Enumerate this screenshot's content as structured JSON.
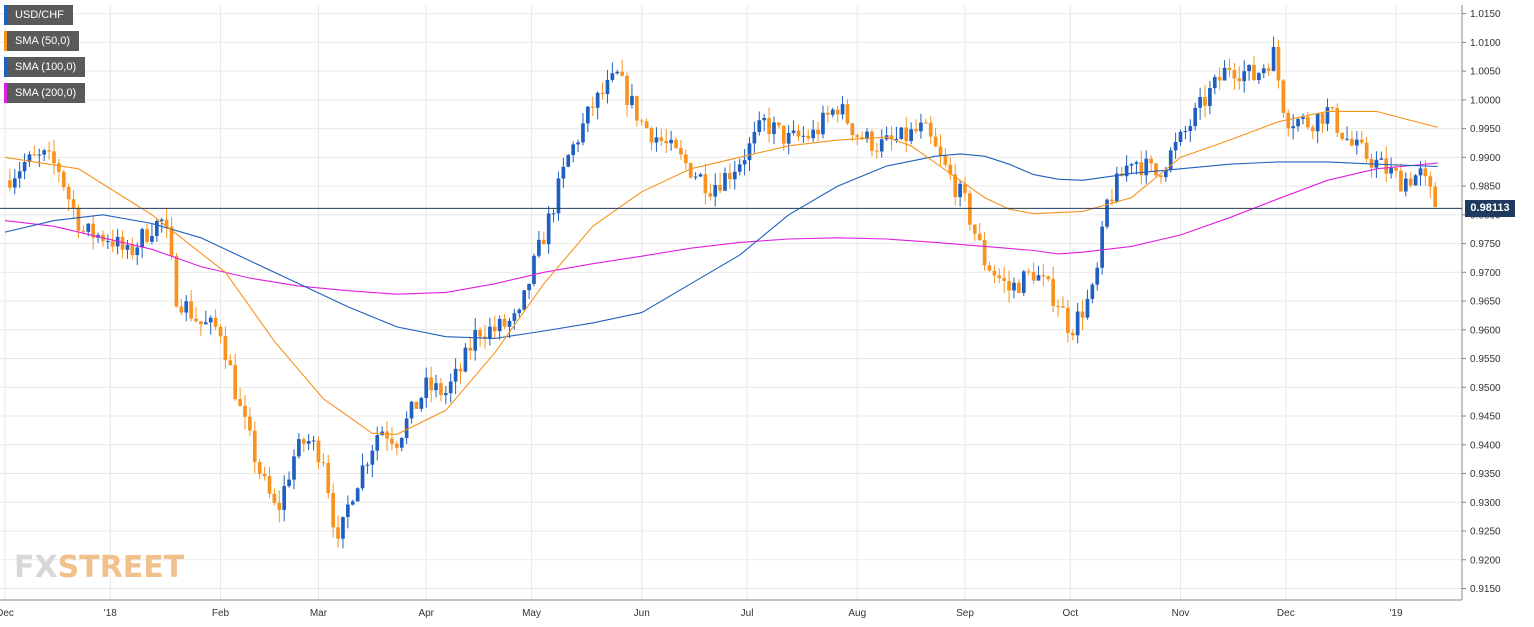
{
  "legend": [
    {
      "label": "USD/CHF",
      "color": "#1f5fbf"
    },
    {
      "label": "SMA (50,0)",
      "color": "#f7931e"
    },
    {
      "label": "SMA (100,0)",
      "color": "#1f5fbf"
    },
    {
      "label": "SMA (200,0)",
      "color": "#e020e0"
    }
  ],
  "watermark": {
    "part1": "FX",
    "part2": "STREET"
  },
  "current_price": "0.98113",
  "colors": {
    "up": "#1f5fbf",
    "down": "#f7931e",
    "sma50": "#f7931e",
    "sma100": "#1f5fbf",
    "sma200": "#e020e0",
    "price_line": "#1f3a5f",
    "grid": "#e9e9e9"
  },
  "chart_data": {
    "type": "candlestick",
    "title": "",
    "ylim": [
      0.913,
      1.0165
    ],
    "y_ticks": [
      "1.0150",
      "1.0100",
      "1.0050",
      "1.0000",
      "0.9950",
      "0.9900",
      "0.9850",
      "0.9800",
      "0.9750",
      "0.9700",
      "0.9650",
      "0.9600",
      "0.9550",
      "0.9500",
      "0.9450",
      "0.9400",
      "0.9350",
      "0.9300",
      "0.9250",
      "0.9200",
      "0.9150"
    ],
    "x_labels": [
      {
        "label": "Dec",
        "week": 0
      },
      {
        "label": "'18",
        "week": 4.3
      },
      {
        "label": "Feb",
        "week": 8.8
      },
      {
        "label": "Mar",
        "week": 12.8
      },
      {
        "label": "Apr",
        "week": 17.2
      },
      {
        "label": "May",
        "week": 21.5
      },
      {
        "label": "Jun",
        "week": 26.0
      },
      {
        "label": "Jul",
        "week": 30.3
      },
      {
        "label": "Aug",
        "week": 34.8
      },
      {
        "label": "Sep",
        "week": 39.2
      },
      {
        "label": "Oct",
        "week": 43.5
      },
      {
        "label": "Nov",
        "week": 48.0
      },
      {
        "label": "Dec",
        "week": 52.3
      },
      {
        "label": "'19",
        "week": 56.8
      }
    ],
    "price_anchors": [
      [
        0.0,
        0.986
      ],
      [
        0.8,
        0.989
      ],
      [
        1.6,
        0.99
      ],
      [
        2.2,
        0.988
      ],
      [
        2.6,
        0.983
      ],
      [
        3.2,
        0.977
      ],
      [
        4.3,
        0.976
      ],
      [
        5.0,
        0.973
      ],
      [
        6.0,
        0.978
      ],
      [
        6.5,
        0.979
      ],
      [
        7.0,
        0.966
      ],
      [
        8.0,
        0.961
      ],
      [
        8.8,
        0.96
      ],
      [
        9.6,
        0.946
      ],
      [
        10.5,
        0.934
      ],
      [
        11.1,
        0.928
      ],
      [
        11.8,
        0.938
      ],
      [
        12.3,
        0.941
      ],
      [
        13.0,
        0.938
      ],
      [
        13.6,
        0.922
      ],
      [
        14.1,
        0.931
      ],
      [
        14.7,
        0.937
      ],
      [
        15.3,
        0.943
      ],
      [
        16.0,
        0.941
      ],
      [
        17.2,
        0.95
      ],
      [
        18.0,
        0.949
      ],
      [
        18.6,
        0.953
      ],
      [
        19.3,
        0.96
      ],
      [
        20.0,
        0.96
      ],
      [
        21.0,
        0.962
      ],
      [
        21.5,
        0.97
      ],
      [
        22.2,
        0.979
      ],
      [
        23.0,
        0.99
      ],
      [
        24.0,
        0.999
      ],
      [
        25.0,
        1.004
      ],
      [
        26.0,
        0.996
      ],
      [
        27.0,
        0.992
      ],
      [
        28.0,
        0.988
      ],
      [
        28.8,
        0.985
      ],
      [
        29.5,
        0.987
      ],
      [
        30.3,
        0.991
      ],
      [
        31.0,
        0.996
      ],
      [
        32.0,
        0.993
      ],
      [
        33.0,
        0.994
      ],
      [
        34.0,
        0.999
      ],
      [
        34.8,
        0.994
      ],
      [
        35.7,
        0.992
      ],
      [
        36.5,
        0.993
      ],
      [
        37.5,
        0.995
      ],
      [
        38.4,
        0.988
      ],
      [
        39.2,
        0.982
      ],
      [
        40.0,
        0.972
      ],
      [
        41.0,
        0.967
      ],
      [
        42.0,
        0.97
      ],
      [
        43.0,
        0.965
      ],
      [
        43.5,
        0.96
      ],
      [
        44.5,
        0.967
      ],
      [
        45.0,
        0.982
      ],
      [
        46.0,
        0.99
      ],
      [
        47.0,
        0.987
      ],
      [
        48.0,
        0.993
      ],
      [
        49.0,
        1.0
      ],
      [
        50.0,
        1.006
      ],
      [
        51.0,
        1.004
      ],
      [
        51.8,
        1.008
      ],
      [
        52.3,
        0.997
      ],
      [
        53.2,
        0.996
      ],
      [
        54.0,
        0.998
      ],
      [
        55.0,
        0.992
      ],
      [
        56.0,
        0.989
      ],
      [
        57.0,
        0.986
      ],
      [
        57.8,
        0.987
      ],
      [
        58.5,
        0.981
      ]
    ],
    "sma_50": [
      [
        0,
        0.99
      ],
      [
        3,
        0.988
      ],
      [
        6,
        0.98
      ],
      [
        9,
        0.97
      ],
      [
        11,
        0.958
      ],
      [
        13,
        0.948
      ],
      [
        15,
        0.942
      ],
      [
        16,
        0.9418
      ],
      [
        18,
        0.946
      ],
      [
        20,
        0.956
      ],
      [
        22,
        0.968
      ],
      [
        24,
        0.978
      ],
      [
        26,
        0.984
      ],
      [
        28,
        0.988
      ],
      [
        30,
        0.99
      ],
      [
        32,
        0.992
      ],
      [
        34,
        0.993
      ],
      [
        36,
        0.9935
      ],
      [
        37,
        0.992
      ],
      [
        38,
        0.989
      ],
      [
        39,
        0.986
      ],
      [
        40,
        0.983
      ],
      [
        41,
        0.981
      ],
      [
        42,
        0.9802
      ],
      [
        44,
        0.9806
      ],
      [
        46,
        0.983
      ],
      [
        47,
        0.9865
      ],
      [
        48,
        0.99
      ],
      [
        50,
        0.993
      ],
      [
        52,
        0.9962
      ],
      [
        54,
        0.998
      ],
      [
        56,
        0.998
      ],
      [
        58.5,
        0.9952
      ]
    ],
    "sma_100": [
      [
        0,
        0.977
      ],
      [
        2,
        0.979
      ],
      [
        4,
        0.98
      ],
      [
        6,
        0.9785
      ],
      [
        8,
        0.976
      ],
      [
        10,
        0.972
      ],
      [
        12,
        0.968
      ],
      [
        14,
        0.964
      ],
      [
        16,
        0.9605
      ],
      [
        18,
        0.9588
      ],
      [
        20,
        0.9585
      ],
      [
        22,
        0.9598
      ],
      [
        24,
        0.9612
      ],
      [
        26,
        0.963
      ],
      [
        28,
        0.968
      ],
      [
        30,
        0.973
      ],
      [
        32,
        0.98
      ],
      [
        34,
        0.985
      ],
      [
        36,
        0.9885
      ],
      [
        38,
        0.9902
      ],
      [
        39,
        0.9906
      ],
      [
        40,
        0.9902
      ],
      [
        41,
        0.9888
      ],
      [
        42,
        0.987
      ],
      [
        43,
        0.9862
      ],
      [
        44,
        0.986
      ],
      [
        46,
        0.9872
      ],
      [
        48,
        0.988
      ],
      [
        50,
        0.9888
      ],
      [
        52,
        0.9892
      ],
      [
        54,
        0.9892
      ],
      [
        56,
        0.9888
      ],
      [
        58.5,
        0.9884
      ]
    ],
    "sma_200": [
      [
        0,
        0.979
      ],
      [
        2,
        0.978
      ],
      [
        4,
        0.976
      ],
      [
        6,
        0.974
      ],
      [
        8,
        0.971
      ],
      [
        10,
        0.969
      ],
      [
        12,
        0.9676
      ],
      [
        14,
        0.9668
      ],
      [
        16,
        0.9662
      ],
      [
        18,
        0.9665
      ],
      [
        20,
        0.968
      ],
      [
        22,
        0.97
      ],
      [
        24,
        0.9715
      ],
      [
        26,
        0.9728
      ],
      [
        28,
        0.9742
      ],
      [
        30,
        0.9752
      ],
      [
        32,
        0.9758
      ],
      [
        34,
        0.976
      ],
      [
        36,
        0.9758
      ],
      [
        38,
        0.9752
      ],
      [
        40,
        0.9745
      ],
      [
        42,
        0.9738
      ],
      [
        43,
        0.9732
      ],
      [
        44,
        0.9735
      ],
      [
        46,
        0.9745
      ],
      [
        48,
        0.9765
      ],
      [
        50,
        0.9795
      ],
      [
        52,
        0.9828
      ],
      [
        54,
        0.986
      ],
      [
        56,
        0.988
      ],
      [
        58.5,
        0.989
      ]
    ]
  }
}
